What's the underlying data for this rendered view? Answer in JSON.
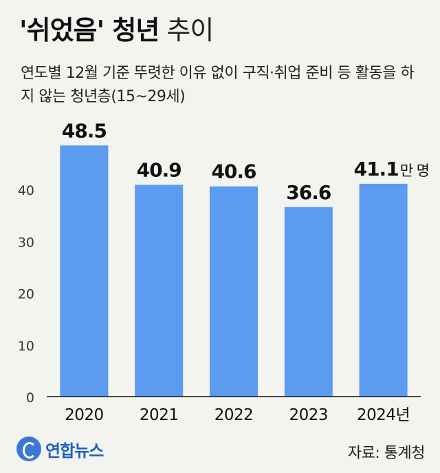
{
  "header": {
    "title_bold": "'쉬었음' 청년",
    "title_light": "추이",
    "subtitle": "연도별 12월 기준 뚜렷한 이유 없이 구직·취업 준비 등 활동을 하지 않는 청년층(15~29세)"
  },
  "footer": {
    "logo_text": "연합뉴스",
    "source": "자료: 통계청"
  },
  "chart_data": {
    "type": "bar",
    "categories": [
      "2020",
      "2021",
      "2022",
      "2023",
      "2024년"
    ],
    "values": [
      48.5,
      40.9,
      40.6,
      36.6,
      41.1
    ],
    "value_labels": [
      "48.5",
      "40.9",
      "40.6",
      "36.6",
      "41.1"
    ],
    "unit_suffix": "만 명",
    "yticks": [
      0,
      10,
      20,
      30,
      40
    ],
    "ylim": [
      0,
      50
    ],
    "grid": false,
    "colors": {
      "bar": "#5b9bf0",
      "axis": "#111111",
      "tick_label": "#333333",
      "background": "#f3f3f0"
    }
  }
}
